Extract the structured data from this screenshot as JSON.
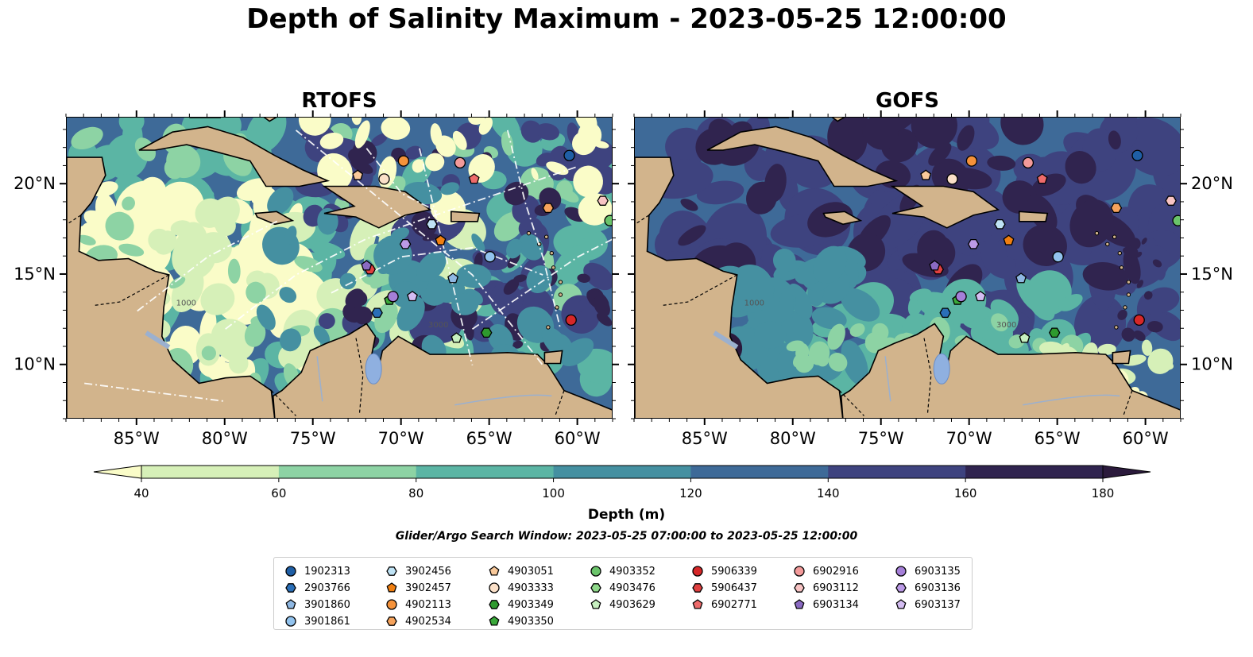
{
  "title": "Depth of Salinity Maximum - 2023-05-25 12:00:00",
  "panels": [
    {
      "id": "rtofs",
      "title": "RTOFS"
    },
    {
      "id": "gofs",
      "title": "GOFS"
    }
  ],
  "axes": {
    "lon_ticks": [
      "85°W",
      "80°W",
      "75°W",
      "70°W",
      "65°W",
      "60°W"
    ],
    "lat_ticks": [
      "20°N",
      "15°N",
      "10°N"
    ],
    "lon_values": [
      -85,
      -80,
      -75,
      -70,
      -65,
      -60
    ],
    "lat_values": [
      20,
      15,
      10
    ],
    "lon_range": [
      -89,
      -58
    ],
    "lat_range": [
      7,
      23.7
    ]
  },
  "colorbar": {
    "label": "Depth (m)",
    "ticks": [
      "40",
      "60",
      "80",
      "100",
      "120",
      "140",
      "160",
      "180"
    ],
    "tick_values": [
      40,
      60,
      80,
      100,
      120,
      140,
      160,
      180
    ],
    "colors": [
      "#d6f0b8",
      "#8dd3a4",
      "#5bb5a4",
      "#4590a1",
      "#3e6a98",
      "#3e437f",
      "#30244f"
    ],
    "under_color": "#fafcc8",
    "over_color": "#2b1a3c",
    "extend": "both"
  },
  "search_window": "Glider/Argo Search Window: 2023-05-25 07:00:00 to 2023-05-25 12:00:00",
  "contour_labels": [
    "1000",
    "3000"
  ],
  "legend": [
    {
      "id": "1902313",
      "color": "#1f5fa6",
      "marker": "circle",
      "lon": -60.5,
      "lat": 21.6
    },
    {
      "id": "2903766",
      "color": "#2a6fb8",
      "marker": "hexagon",
      "lon": -71.4,
      "lat": 12.9
    },
    {
      "id": "3901860",
      "color": "#8fb8e3",
      "marker": "pentagon",
      "lon": -67.1,
      "lat": 14.8
    },
    {
      "id": "3901861",
      "color": "#92c3ee",
      "marker": "circle",
      "lon": -65.0,
      "lat": 16.0
    },
    {
      "id": "3902456",
      "color": "#bfe3f5",
      "marker": "hexagon",
      "lon": -68.3,
      "lat": 17.8
    },
    {
      "id": "3902457",
      "color": "#f07f10",
      "marker": "pentagon",
      "lon": -67.8,
      "lat": 16.9
    },
    {
      "id": "4902113",
      "color": "#f5923a",
      "marker": "circle",
      "lon": -69.9,
      "lat": 21.3
    },
    {
      "id": "4902534",
      "color": "#f6a35c",
      "marker": "hexagon",
      "lon": -61.7,
      "lat": 18.7
    },
    {
      "id": "4903051",
      "color": "#f9c99a",
      "marker": "pentagon",
      "lon": -72.5,
      "lat": 20.5
    },
    {
      "id": "4903333",
      "color": "#fbe0c8",
      "marker": "circle",
      "lon": -71.0,
      "lat": 20.3
    },
    {
      "id": "4903349",
      "color": "#2e9a2e",
      "marker": "hexagon",
      "lon": -65.2,
      "lat": 11.8
    },
    {
      "id": "4903350",
      "color": "#3aa83a",
      "marker": "pentagon",
      "lon": -70.7,
      "lat": 13.6
    },
    {
      "id": "4903352",
      "color": "#6ac46a",
      "marker": "circle",
      "lon": -58.2,
      "lat": 18.0
    },
    {
      "id": "4903476",
      "color": "#8fd98a",
      "marker": "hexagon",
      "lon": -57.4,
      "lat": 9.7
    },
    {
      "id": "4903629",
      "color": "#c7f0c0",
      "marker": "pentagon",
      "lon": -66.9,
      "lat": 11.5
    },
    {
      "id": "5906339",
      "color": "#d62728",
      "marker": "circle",
      "lon": -60.4,
      "lat": 12.5
    },
    {
      "id": "5906437",
      "color": "#e04040",
      "marker": "hexagon",
      "lon": -71.8,
      "lat": 15.3
    },
    {
      "id": "6902771",
      "color": "#ee6b6b",
      "marker": "pentagon",
      "lon": -65.9,
      "lat": 20.3
    },
    {
      "id": "6902916",
      "color": "#f39a9a",
      "marker": "circle",
      "lon": -66.7,
      "lat": 21.2
    },
    {
      "id": "6903112",
      "color": "#f8c4c4",
      "marker": "hexagon",
      "lon": -58.6,
      "lat": 19.1
    },
    {
      "id": "6903134",
      "color": "#8a6ac2",
      "marker": "pentagon",
      "lon": -72.0,
      "lat": 15.5
    },
    {
      "id": "6903135",
      "color": "#a57fd8",
      "marker": "circle",
      "lon": -70.5,
      "lat": 13.8
    },
    {
      "id": "6903136",
      "color": "#bb9ae6",
      "marker": "hexagon",
      "lon": -69.8,
      "lat": 16.7
    },
    {
      "id": "6903137",
      "color": "#d4bdf2",
      "marker": "pentagon",
      "lon": -69.4,
      "lat": 13.8
    }
  ]
}
